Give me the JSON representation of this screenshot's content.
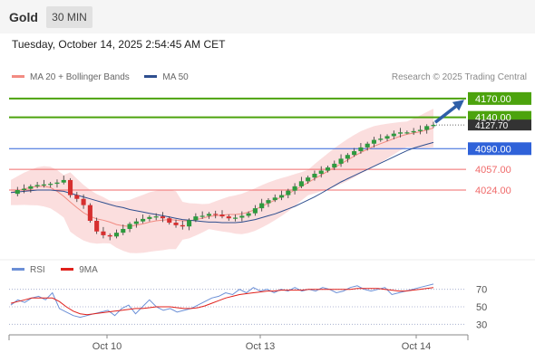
{
  "header": {
    "title": "Gold",
    "timeframe": "30 MIN"
  },
  "datetime": "Tuesday, October 14, 2025 2:54:45 AM CET",
  "legend": {
    "main": [
      {
        "label": "MA 20 + Bollinger Bands",
        "color": "#f28b82"
      },
      {
        "label": "MA 50",
        "color": "#2f4f8f"
      }
    ],
    "rsi": [
      {
        "label": "RSI",
        "color": "#6b8fd6"
      },
      {
        "label": "9MA",
        "color": "#e0201b"
      }
    ]
  },
  "credit": "Research © 2025 Trading Central",
  "colors": {
    "resistance": "#4ca30d",
    "pivot": "#2f62d9",
    "support": "#f06a6a",
    "current": "#333333",
    "arrow": "#2f5fa8",
    "candle_up": "#2e9a3e",
    "candle_down": "#d62f2f",
    "band": "#f9d3d3"
  },
  "chart_data": [
    {
      "type": "candlestick",
      "title": "Gold",
      "timeframe": "30 MIN",
      "x_ticks": [
        "Oct 10",
        "Oct 13",
        "Oct 14"
      ],
      "ylim": [
        3923,
        4190
      ],
      "levels": [
        {
          "value": 4170.0,
          "label": "4170.00",
          "kind": "resistance"
        },
        {
          "value": 4140.0,
          "label": "4140.00",
          "kind": "resistance"
        },
        {
          "value": 4127.7,
          "label": "4127.70",
          "kind": "current"
        },
        {
          "value": 4090.0,
          "label": "4090.00",
          "kind": "pivot"
        },
        {
          "value": 4057.0,
          "label": "4057.00",
          "kind": "support"
        },
        {
          "value": 4024.0,
          "label": "4024.00",
          "kind": "support"
        }
      ],
      "close_trace": [
        4018,
        4024,
        4026,
        4030,
        4032,
        4033,
        4034,
        4036,
        4040,
        4016,
        4010,
        4000,
        3975,
        3958,
        3952,
        3950,
        3956,
        3962,
        3970,
        3974,
        3978,
        3981,
        3982,
        3979,
        3972,
        3968,
        3966,
        3976,
        3982,
        3983,
        3986,
        3985,
        3982,
        3979,
        3980,
        3983,
        3987,
        3995,
        4003,
        4008,
        4012,
        4016,
        4023,
        4030,
        4038,
        4044,
        4050,
        4055,
        4060,
        4066,
        4074,
        4080,
        4086,
        4092,
        4098,
        4104,
        4106,
        4110,
        4114,
        4116,
        4116,
        4118,
        4120,
        4126,
        4128
      ],
      "ma20_trace": [
        4020,
        4023,
        4026,
        4028,
        4030,
        4030,
        4028,
        4022,
        4014,
        4005,
        3996,
        3988,
        3982,
        3978,
        3976,
        3973,
        3969,
        3967,
        3966,
        3968,
        3970,
        3973,
        3975,
        3976,
        3977,
        3976,
        3975,
        3975,
        3977,
        3979,
        3982,
        3983,
        3984,
        3985,
        3985,
        3986,
        3989,
        3993,
        3998,
        4003,
        4008,
        4013,
        4018,
        4024,
        4030,
        4036,
        4042,
        4048,
        4054,
        4060,
        4066,
        4072,
        4078,
        4084,
        4089,
        4094,
        4098,
        4102,
        4106,
        4110,
        4113,
        4115,
        4117,
        4120,
        4123
      ],
      "ma50_trace": [
        4020,
        4021,
        4022,
        4023,
        4024,
        4024,
        4024,
        4023,
        4022,
        4019,
        4016,
        4013,
        4010,
        4007,
        4004,
        4001,
        3998,
        3996,
        3993,
        3991,
        3989,
        3987,
        3985,
        3983,
        3981,
        3979,
        3977,
        3976,
        3975,
        3974,
        3973,
        3973,
        3972,
        3972,
        3972,
        3973,
        3975,
        3977,
        3980,
        3983,
        3986,
        3990,
        3994,
        3998,
        4003,
        4008,
        4013,
        4019,
        4025,
        4031,
        4037,
        4042,
        4047,
        4052,
        4057,
        4062,
        4067,
        4072,
        4077,
        4082,
        4087,
        4091,
        4094,
        4097,
        4100
      ],
      "projection": {
        "from": 4132,
        "to": 4168
      }
    },
    {
      "type": "line",
      "name": "RSI panel",
      "ylim": [
        20,
        80
      ],
      "y_ticks": [
        "70",
        "50",
        "30"
      ],
      "x_ticks": [
        "Oct 10",
        "Oct 13",
        "Oct 14"
      ],
      "series": [
        {
          "name": "RSI",
          "values": [
            52,
            58,
            55,
            60,
            62,
            58,
            66,
            48,
            44,
            40,
            38,
            40,
            42,
            44,
            46,
            40,
            48,
            52,
            42,
            50,
            58,
            50,
            46,
            48,
            44,
            46,
            48,
            52,
            56,
            60,
            62,
            66,
            64,
            70,
            66,
            72,
            68,
            70,
            66,
            70,
            68,
            72,
            68,
            70,
            68,
            72,
            70,
            66,
            68,
            72,
            74,
            70,
            68,
            70,
            72,
            64,
            66,
            68,
            70,
            72,
            74,
            76
          ]
        },
        {
          "name": "9MA",
          "values": [
            54,
            56,
            58,
            60,
            60,
            60,
            60,
            56,
            50,
            45,
            42,
            41,
            42,
            43,
            44,
            45,
            46,
            47,
            48,
            48,
            49,
            50,
            50,
            50,
            49,
            48,
            48,
            49,
            51,
            54,
            57,
            60,
            62,
            64,
            65,
            66,
            67,
            68,
            68,
            69,
            69,
            69,
            69,
            70,
            70,
            70,
            70,
            70,
            70,
            70,
            71,
            71,
            71,
            71,
            70,
            69,
            68,
            68,
            69,
            70,
            71,
            72
          ]
        }
      ]
    }
  ]
}
